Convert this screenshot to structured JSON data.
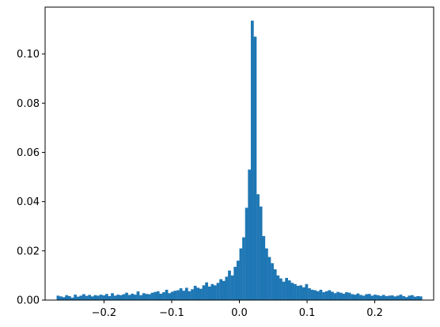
{
  "chart_data": {
    "type": "bar",
    "title": "",
    "xlabel": "",
    "ylabel": "",
    "xlim": [
      -0.287,
      0.287
    ],
    "ylim": [
      0,
      0.119
    ],
    "grid": false,
    "bar_color": "#1f77b4",
    "bin_edges_range": [
      -0.27,
      0.27
    ],
    "x_ticks": [
      {
        "value": -0.2,
        "label": "−0.2"
      },
      {
        "value": -0.1,
        "label": "−0.1"
      },
      {
        "value": 0.0,
        "label": "0.0"
      },
      {
        "value": 0.1,
        "label": "0.1"
      },
      {
        "value": 0.2,
        "label": "0.2"
      }
    ],
    "y_ticks": [
      {
        "value": 0.0,
        "label": "0.00"
      },
      {
        "value": 0.02,
        "label": "0.02"
      },
      {
        "value": 0.04,
        "label": "0.04"
      },
      {
        "value": 0.06,
        "label": "0.06"
      },
      {
        "value": 0.08,
        "label": "0.08"
      },
      {
        "value": 0.1,
        "label": "0.10"
      }
    ],
    "values": [
      0.0018,
      0.0015,
      0.0012,
      0.002,
      0.0016,
      0.001,
      0.0022,
      0.0014,
      0.0018,
      0.0024,
      0.0017,
      0.0021,
      0.0015,
      0.002,
      0.0018,
      0.0022,
      0.0019,
      0.0025,
      0.0016,
      0.0028,
      0.0018,
      0.0022,
      0.002,
      0.0024,
      0.003,
      0.0021,
      0.0026,
      0.0022,
      0.0035,
      0.002,
      0.0028,
      0.0025,
      0.0024,
      0.003,
      0.0033,
      0.0036,
      0.0026,
      0.0032,
      0.0042,
      0.0028,
      0.0034,
      0.0038,
      0.004,
      0.0048,
      0.0038,
      0.005,
      0.0036,
      0.0044,
      0.0058,
      0.005,
      0.0046,
      0.006,
      0.0072,
      0.0055,
      0.0065,
      0.006,
      0.007,
      0.0085,
      0.0078,
      0.0095,
      0.012,
      0.01,
      0.0135,
      0.016,
      0.021,
      0.0255,
      0.0375,
      0.053,
      0.1135,
      0.107,
      0.043,
      0.038,
      0.026,
      0.021,
      0.0175,
      0.015,
      0.0125,
      0.01,
      0.0088,
      0.0075,
      0.009,
      0.008,
      0.007,
      0.0065,
      0.0058,
      0.006,
      0.0052,
      0.0065,
      0.0048,
      0.0042,
      0.004,
      0.0036,
      0.0042,
      0.0032,
      0.0036,
      0.004,
      0.0034,
      0.0028,
      0.0033,
      0.003,
      0.0026,
      0.0032,
      0.003,
      0.0024,
      0.0022,
      0.0027,
      0.0021,
      0.0018,
      0.0024,
      0.0025,
      0.0018,
      0.0022,
      0.002,
      0.0017,
      0.0021,
      0.0016,
      0.0018,
      0.0019,
      0.0015,
      0.0018,
      0.0022,
      0.0016,
      0.0012,
      0.0018,
      0.002,
      0.0014,
      0.0016,
      0.0015
    ]
  }
}
